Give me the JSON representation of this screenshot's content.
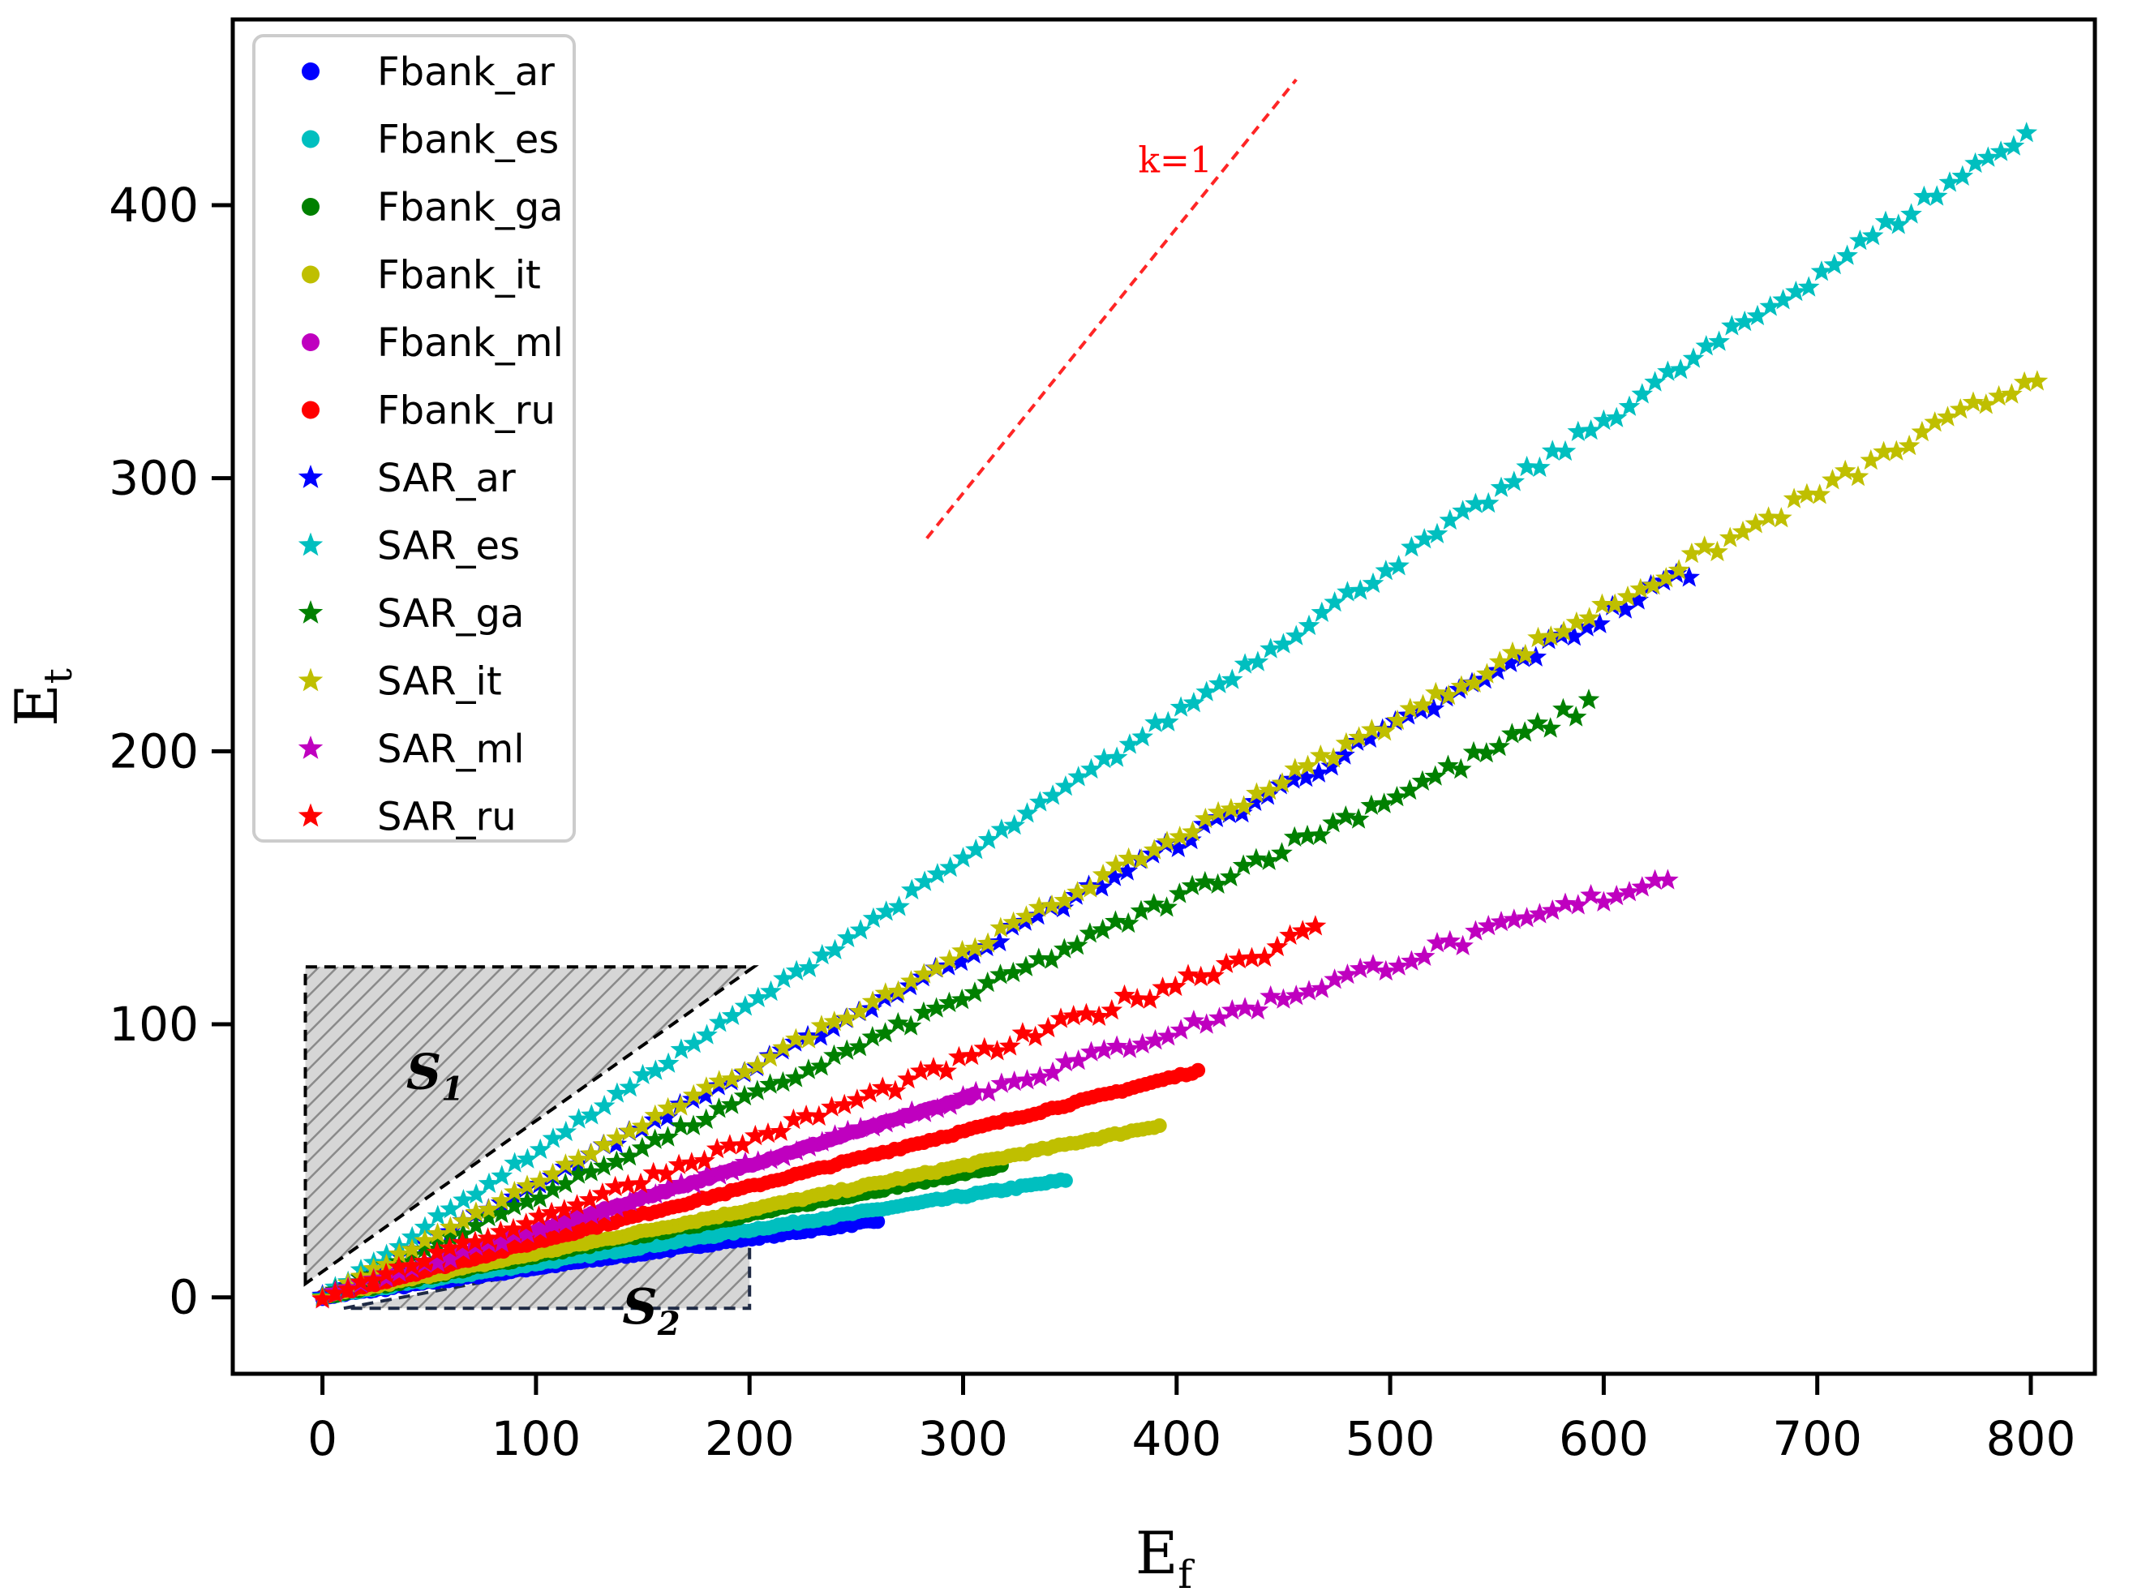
{
  "chart_data": {
    "type": "scatter",
    "xlabel": "E",
    "xlabel_sub": "f",
    "ylabel": "E",
    "ylabel_sub": "t",
    "xlim": [
      -42,
      830
    ],
    "ylim": [
      -28,
      468
    ],
    "x_ticks": [
      0,
      100,
      200,
      300,
      400,
      500,
      600,
      700,
      800
    ],
    "y_ticks": [
      0,
      100,
      200,
      300,
      400
    ],
    "x_tick_labels": [
      "0",
      "100",
      "200",
      "300",
      "400",
      "500",
      "600",
      "700",
      "800"
    ],
    "y_tick_labels": [
      "0",
      "100",
      "200",
      "300",
      "400"
    ],
    "legend_position": "top-left",
    "reference_line": {
      "label": "k=1",
      "x": [
        283,
        456
      ],
      "y": [
        278,
        446
      ],
      "color": "#ff0000"
    },
    "regions": [
      {
        "name": "S",
        "sub": "1",
        "polygon": [
          [
            -8,
            5
          ],
          [
            -8,
            121
          ],
          [
            202,
            121
          ]
        ]
      },
      {
        "name": "S",
        "sub": "2",
        "polygon": [
          [
            10,
            -4
          ],
          [
            200,
            24
          ],
          [
            200,
            -4
          ]
        ]
      }
    ],
    "series": [
      {
        "name": "Fbank_ar",
        "marker": "circle",
        "color": "#0000ff",
        "x": [
          0,
          260
        ],
        "y": [
          0,
          28
        ]
      },
      {
        "name": "Fbank_es",
        "marker": "circle",
        "color": "#00bfbf",
        "x": [
          0,
          348
        ],
        "y": [
          0,
          43
        ]
      },
      {
        "name": "Fbank_ga",
        "marker": "circle",
        "color": "#008000",
        "x": [
          0,
          318
        ],
        "y": [
          0,
          48
        ]
      },
      {
        "name": "Fbank_it",
        "marker": "circle",
        "color": "#bfbf00",
        "x": [
          0,
          392
        ],
        "y": [
          0,
          63
        ]
      },
      {
        "name": "Fbank_ml",
        "marker": "circle",
        "color": "#bf00bf",
        "x": [
          0,
          305
        ],
        "y": [
          0,
          74
        ]
      },
      {
        "name": "Fbank_ru",
        "marker": "circle",
        "color": "#ff0000",
        "x": [
          0,
          410
        ],
        "y": [
          0,
          83
        ]
      },
      {
        "name": "SAR_ar",
        "marker": "star",
        "color": "#0000ff",
        "x": [
          0,
          640
        ],
        "y": [
          0,
          266
        ]
      },
      {
        "name": "SAR_es",
        "marker": "star",
        "color": "#00bfbf",
        "x": [
          0,
          798
        ],
        "y": [
          0,
          427
        ]
      },
      {
        "name": "SAR_ga",
        "marker": "star",
        "color": "#008000",
        "x": [
          0,
          593
        ],
        "y": [
          0,
          217
        ]
      },
      {
        "name": "SAR_it",
        "marker": "star",
        "color": "#bfbf00",
        "x": [
          0,
          803
        ],
        "y": [
          0,
          338
        ]
      },
      {
        "name": "SAR_ml",
        "marker": "star",
        "color": "#bf00bf",
        "x": [
          0,
          630
        ],
        "y": [
          0,
          154
        ]
      },
      {
        "name": "SAR_ru",
        "marker": "star",
        "color": "#ff0000",
        "x": [
          0,
          465
        ],
        "y": [
          0,
          134
        ]
      }
    ]
  }
}
